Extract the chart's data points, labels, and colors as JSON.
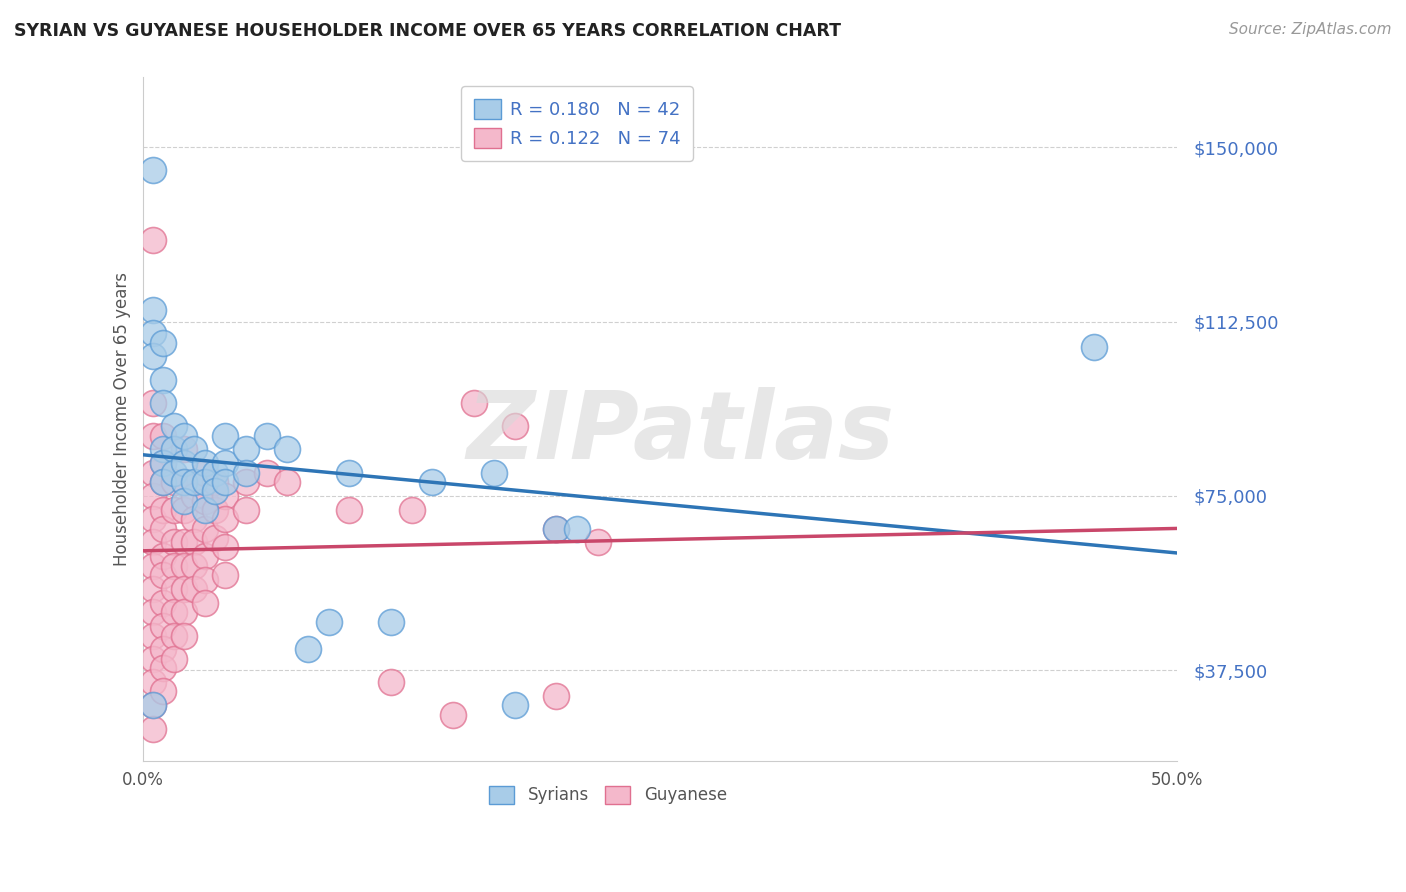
{
  "title": "SYRIAN VS GUYANESE HOUSEHOLDER INCOME OVER 65 YEARS CORRELATION CHART",
  "source": "Source: ZipAtlas.com",
  "ylabel": "Householder Income Over 65 years",
  "xlim": [
    0.0,
    0.5
  ],
  "ylim": [
    18000,
    165000
  ],
  "yticks": [
    37500,
    75000,
    112500,
    150000
  ],
  "ytick_labels": [
    "$37,500",
    "$75,000",
    "$112,500",
    "$150,000"
  ],
  "xticks": [
    0.0,
    0.1,
    0.2,
    0.3,
    0.4,
    0.5
  ],
  "xtick_labels": [
    "0.0%",
    "",
    "",
    "",
    "",
    "50.0%"
  ],
  "syrian_R": 0.18,
  "syrian_N": 42,
  "guyanese_R": 0.122,
  "guyanese_N": 74,
  "legend_label_syrian": "Syrians",
  "legend_label_guyanese": "Guyanese",
  "syrian_color": "#a8cce8",
  "guyanese_color": "#f4b8cb",
  "syrian_edge_color": "#5b9bd5",
  "guyanese_edge_color": "#e07090",
  "syrian_line_color": "#2e75b6",
  "guyanese_line_color": "#c9476a",
  "watermark": "ZIPatlas",
  "background_color": "#ffffff",
  "grid_color": "#d0d0d0",
  "syrian_points": [
    [
      0.005,
      145000
    ],
    [
      0.005,
      115000
    ],
    [
      0.005,
      110000
    ],
    [
      0.005,
      105000
    ],
    [
      0.01,
      108000
    ],
    [
      0.01,
      100000
    ],
    [
      0.01,
      95000
    ],
    [
      0.01,
      85000
    ],
    [
      0.01,
      82000
    ],
    [
      0.01,
      78000
    ],
    [
      0.015,
      90000
    ],
    [
      0.015,
      85000
    ],
    [
      0.015,
      80000
    ],
    [
      0.02,
      88000
    ],
    [
      0.02,
      82000
    ],
    [
      0.02,
      78000
    ],
    [
      0.02,
      74000
    ],
    [
      0.025,
      85000
    ],
    [
      0.025,
      78000
    ],
    [
      0.03,
      82000
    ],
    [
      0.03,
      78000
    ],
    [
      0.03,
      72000
    ],
    [
      0.035,
      80000
    ],
    [
      0.035,
      76000
    ],
    [
      0.04,
      88000
    ],
    [
      0.04,
      82000
    ],
    [
      0.04,
      78000
    ],
    [
      0.05,
      85000
    ],
    [
      0.05,
      80000
    ],
    [
      0.06,
      88000
    ],
    [
      0.07,
      85000
    ],
    [
      0.08,
      42000
    ],
    [
      0.09,
      48000
    ],
    [
      0.1,
      80000
    ],
    [
      0.12,
      48000
    ],
    [
      0.14,
      78000
    ],
    [
      0.17,
      80000
    ],
    [
      0.2,
      68000
    ],
    [
      0.21,
      68000
    ],
    [
      0.46,
      107000
    ],
    [
      0.005,
      30000
    ],
    [
      0.18,
      30000
    ]
  ],
  "guyanese_points": [
    [
      0.005,
      130000
    ],
    [
      0.005,
      95000
    ],
    [
      0.005,
      88000
    ],
    [
      0.005,
      80000
    ],
    [
      0.005,
      75000
    ],
    [
      0.005,
      70000
    ],
    [
      0.005,
      65000
    ],
    [
      0.005,
      60000
    ],
    [
      0.005,
      55000
    ],
    [
      0.005,
      50000
    ],
    [
      0.005,
      45000
    ],
    [
      0.005,
      40000
    ],
    [
      0.005,
      35000
    ],
    [
      0.005,
      30000
    ],
    [
      0.005,
      25000
    ],
    [
      0.01,
      88000
    ],
    [
      0.01,
      82000
    ],
    [
      0.01,
      78000
    ],
    [
      0.01,
      72000
    ],
    [
      0.01,
      68000
    ],
    [
      0.01,
      62000
    ],
    [
      0.01,
      58000
    ],
    [
      0.01,
      52000
    ],
    [
      0.01,
      47000
    ],
    [
      0.01,
      42000
    ],
    [
      0.01,
      38000
    ],
    [
      0.01,
      33000
    ],
    [
      0.015,
      78000
    ],
    [
      0.015,
      72000
    ],
    [
      0.015,
      65000
    ],
    [
      0.015,
      60000
    ],
    [
      0.015,
      55000
    ],
    [
      0.015,
      50000
    ],
    [
      0.015,
      45000
    ],
    [
      0.015,
      40000
    ],
    [
      0.02,
      85000
    ],
    [
      0.02,
      78000
    ],
    [
      0.02,
      72000
    ],
    [
      0.02,
      65000
    ],
    [
      0.02,
      60000
    ],
    [
      0.02,
      55000
    ],
    [
      0.02,
      50000
    ],
    [
      0.02,
      45000
    ],
    [
      0.025,
      75000
    ],
    [
      0.025,
      70000
    ],
    [
      0.025,
      65000
    ],
    [
      0.025,
      60000
    ],
    [
      0.025,
      55000
    ],
    [
      0.03,
      80000
    ],
    [
      0.03,
      74000
    ],
    [
      0.03,
      68000
    ],
    [
      0.03,
      62000
    ],
    [
      0.03,
      57000
    ],
    [
      0.03,
      52000
    ],
    [
      0.035,
      78000
    ],
    [
      0.035,
      72000
    ],
    [
      0.035,
      66000
    ],
    [
      0.04,
      75000
    ],
    [
      0.04,
      70000
    ],
    [
      0.04,
      64000
    ],
    [
      0.04,
      58000
    ],
    [
      0.05,
      78000
    ],
    [
      0.05,
      72000
    ],
    [
      0.06,
      80000
    ],
    [
      0.07,
      78000
    ],
    [
      0.1,
      72000
    ],
    [
      0.13,
      72000
    ],
    [
      0.16,
      95000
    ],
    [
      0.18,
      90000
    ],
    [
      0.2,
      68000
    ],
    [
      0.22,
      65000
    ],
    [
      0.12,
      35000
    ],
    [
      0.2,
      32000
    ],
    [
      0.15,
      28000
    ]
  ]
}
